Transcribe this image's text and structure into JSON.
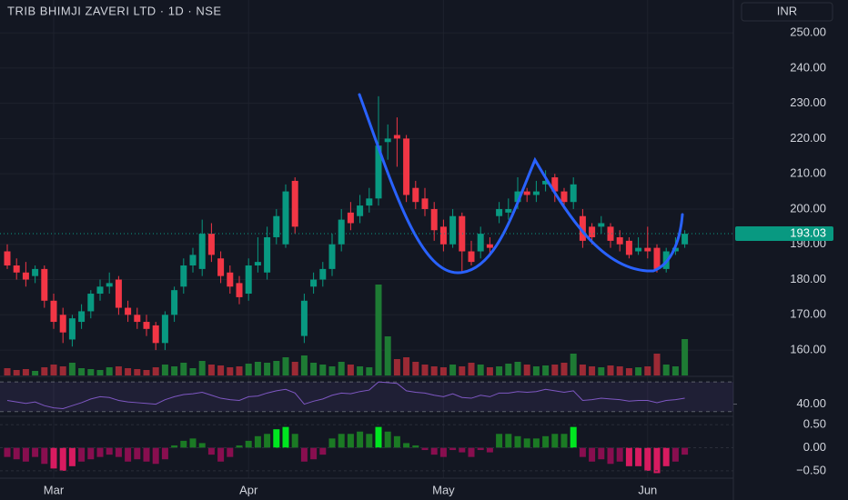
{
  "chart_data": {
    "type": "candlestick",
    "title": "TRIB BHIMJI ZAVERI LTD · 1D · NSE",
    "currency": "INR",
    "last_price": 193.03,
    "categories": [
      null,
      null,
      null,
      null,
      null,
      "Mar",
      null,
      null,
      null,
      null,
      null,
      null,
      null,
      null,
      null,
      null,
      null,
      null,
      null,
      null,
      null,
      null,
      null,
      null,
      null,
      null,
      "Apr",
      null,
      null,
      null,
      null,
      null,
      null,
      null,
      null,
      null,
      null,
      null,
      null,
      null,
      null,
      null,
      null,
      null,
      null,
      null,
      null,
      "May",
      null,
      null,
      null,
      null,
      null,
      null,
      null,
      null,
      null,
      null,
      null,
      null,
      null,
      null,
      null,
      null,
      null,
      null,
      null,
      null,
      null,
      "Jun",
      null,
      null,
      null,
      null
    ],
    "open": [
      188,
      184,
      182,
      181,
      183,
      174,
      170,
      163,
      168,
      171,
      176,
      178,
      180,
      172,
      170,
      168,
      167,
      162,
      170,
      178,
      184,
      183,
      193,
      186,
      182,
      179,
      176,
      184,
      182,
      192,
      190,
      208,
      164,
      178,
      180,
      183,
      190,
      199,
      198,
      201,
      203,
      219,
      221,
      220,
      206,
      203,
      200,
      195,
      190,
      198,
      188,
      188,
      190,
      198,
      199,
      202,
      205,
      204,
      207,
      209,
      205,
      202,
      198,
      195,
      195,
      195,
      192,
      191,
      188,
      189,
      189,
      183,
      188,
      190
    ],
    "high": [
      190,
      186,
      185,
      184,
      184,
      176,
      172,
      170,
      173,
      177,
      180,
      182,
      181,
      174,
      172,
      170,
      168,
      171,
      178,
      186,
      189,
      197,
      196,
      188,
      184,
      181,
      186,
      192,
      195,
      200,
      207,
      209,
      176,
      182,
      185,
      193,
      200,
      202,
      204,
      206,
      232,
      224,
      226,
      221,
      208,
      206,
      202,
      197,
      200,
      199,
      191,
      195,
      192,
      202,
      203,
      209,
      206,
      208,
      211,
      210,
      206,
      209,
      200,
      196,
      198,
      196,
      194,
      192,
      192,
      195,
      190,
      189,
      192,
      194
    ],
    "low": [
      183,
      180,
      178,
      179,
      172,
      166,
      162,
      161,
      166,
      169,
      174,
      176,
      170,
      168,
      166,
      164,
      160,
      160,
      168,
      176,
      182,
      181,
      185,
      179,
      176,
      173,
      174,
      182,
      180,
      190,
      189,
      193,
      162,
      176,
      178,
      181,
      188,
      194,
      196,
      199,
      201,
      214,
      212,
      202,
      200,
      198,
      191,
      188,
      189,
      182,
      184,
      186,
      187,
      196,
      197,
      200,
      202,
      202,
      205,
      202,
      200,
      200,
      189,
      190,
      193,
      189,
      188,
      186,
      187,
      186,
      182,
      182,
      187,
      189
    ],
    "close": [
      184,
      182,
      180,
      183,
      174,
      168,
      165,
      169,
      171,
      176,
      178,
      179,
      172,
      170,
      168,
      166,
      162,
      170,
      177,
      184,
      187,
      193,
      187,
      181,
      178,
      175,
      184,
      185,
      192,
      198,
      205,
      195,
      174,
      180,
      183,
      190,
      197,
      196,
      201,
      203,
      218,
      220,
      220,
      204,
      202,
      200,
      194,
      190,
      198,
      188,
      185,
      193,
      189,
      200,
      200,
      205,
      204,
      205,
      208,
      205,
      202,
      207,
      191,
      192,
      196,
      191,
      190,
      187,
      189,
      188,
      183,
      188,
      189,
      193
    ],
    "volume": [
      8,
      6,
      7,
      5,
      9,
      12,
      10,
      14,
      8,
      7,
      6,
      9,
      10,
      8,
      7,
      6,
      9,
      12,
      10,
      14,
      8,
      16,
      12,
      11,
      9,
      10,
      13,
      15,
      14,
      16,
      20,
      15,
      22,
      14,
      12,
      10,
      15,
      12,
      10,
      9,
      100,
      43,
      18,
      20,
      15,
      12,
      10,
      9,
      12,
      10,
      14,
      12,
      9,
      10,
      13,
      15,
      12,
      10,
      11,
      12,
      14,
      24,
      12,
      10,
      9,
      11,
      10,
      8,
      9,
      10,
      24,
      12,
      10,
      40
    ],
    "rsi": [
      45,
      43,
      41,
      43,
      38,
      35,
      34,
      38,
      42,
      47,
      50,
      49,
      45,
      43,
      42,
      41,
      40,
      46,
      50,
      53,
      54,
      56,
      52,
      48,
      46,
      45,
      50,
      51,
      55,
      58,
      60,
      55,
      40,
      44,
      47,
      52,
      55,
      54,
      57,
      59,
      70,
      69,
      68,
      58,
      56,
      55,
      52,
      50,
      54,
      49,
      48,
      52,
      50,
      55,
      55,
      57,
      56,
      57,
      60,
      58,
      56,
      58,
      45,
      46,
      48,
      47,
      46,
      44,
      45,
      45,
      42,
      45,
      46,
      48
    ],
    "rsi_ylim": [
      26,
      75
    ],
    "rsi_bands": [
      30,
      70
    ],
    "rsi_yticks": [
      {
        "value": 40,
        "label": "40.00"
      }
    ],
    "osc": [
      -0.2,
      -0.25,
      -0.3,
      -0.2,
      -0.35,
      -0.45,
      -0.5,
      -0.4,
      -0.3,
      -0.25,
      -0.2,
      -0.15,
      -0.2,
      -0.3,
      -0.25,
      -0.3,
      -0.35,
      -0.25,
      0.05,
      0.15,
      0.2,
      0.1,
      -0.15,
      -0.3,
      -0.2,
      0.05,
      0.15,
      0.25,
      0.3,
      0.4,
      0.45,
      0.3,
      -0.3,
      -0.25,
      -0.15,
      0.2,
      0.3,
      0.3,
      0.35,
      0.3,
      0.45,
      0.35,
      0.25,
      0.1,
      0.05,
      -0.05,
      -0.15,
      -0.2,
      -0.05,
      -0.1,
      -0.2,
      -0.05,
      -0.1,
      0.3,
      0.3,
      0.25,
      0.2,
      0.2,
      0.25,
      0.3,
      0.3,
      0.45,
      -0.2,
      -0.3,
      -0.25,
      -0.35,
      -0.3,
      -0.4,
      -0.4,
      -0.5,
      -0.55,
      -0.4,
      -0.3,
      -0.15
    ],
    "osc_ylim": [
      -0.64,
      0.64
    ],
    "osc_yticks": [
      {
        "value": 0.5,
        "label": "0.50"
      },
      {
        "value": 0,
        "label": "0.00"
      },
      {
        "value": -0.5,
        "label": "−0.50"
      }
    ],
    "ylim": [
      152.8,
      259.3
    ],
    "yticks": [
      {
        "value": 160,
        "label": "160.00"
      },
      {
        "value": 170,
        "label": "170.00"
      },
      {
        "value": 180,
        "label": "180.00"
      },
      {
        "value": 190,
        "label": "190.00"
      },
      {
        "value": 200,
        "label": "200.00"
      },
      {
        "value": 210,
        "label": "210.00"
      },
      {
        "value": 220,
        "label": "220.00"
      },
      {
        "value": 230,
        "label": "230.00"
      },
      {
        "value": 240,
        "label": "240.00"
      },
      {
        "value": 250,
        "label": "250.00"
      }
    ],
    "up_color": "#089981",
    "down_color": "#f23645",
    "grid": true
  }
}
